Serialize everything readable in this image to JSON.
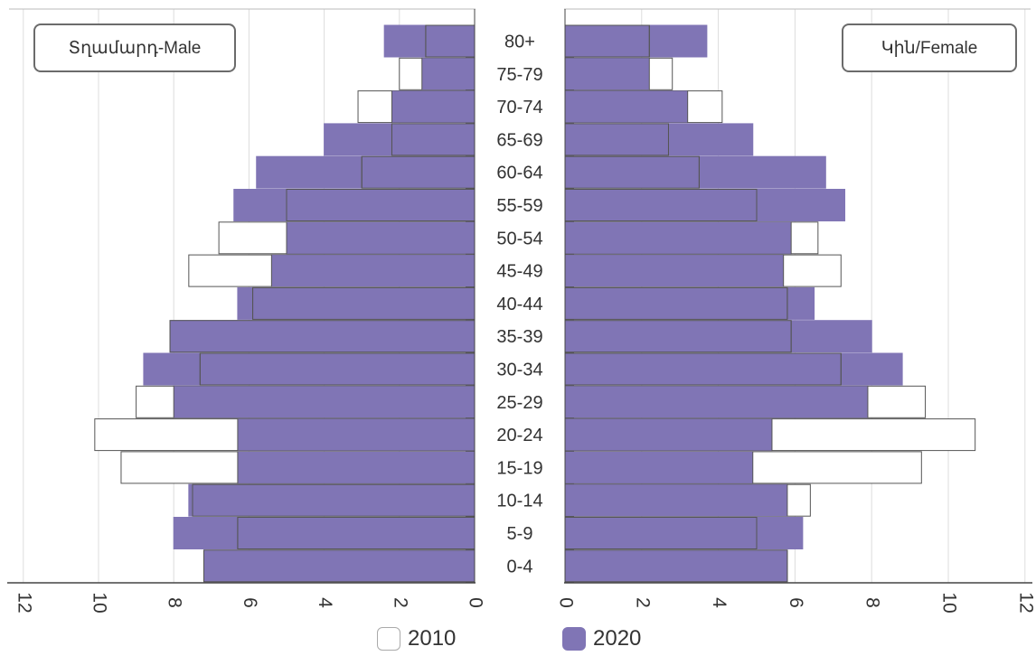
{
  "chart_data": {
    "type": "bar",
    "subtype": "population-pyramid",
    "categories": [
      "80+",
      "75-79",
      "70-74",
      "65-69",
      "60-64",
      "55-59",
      "50-54",
      "45-49",
      "40-44",
      "35-39",
      "30-34",
      "25-29",
      "20-24",
      "15-19",
      "10-14",
      "5-9",
      "0-4"
    ],
    "panels": [
      {
        "label": "Տղամարդ-Male",
        "direction": "left",
        "xlim": [
          0,
          12
        ],
        "ticks": [
          12,
          10,
          8,
          6,
          4,
          2,
          0
        ],
        "series": [
          {
            "name": "2010",
            "values": [
              1.3,
              2.0,
              3.1,
              2.2,
              3.0,
              5.0,
              6.8,
              7.6,
              5.9,
              8.1,
              7.3,
              9.0,
              10.1,
              9.4,
              7.5,
              6.3,
              7.2
            ]
          },
          {
            "name": "2020",
            "values": [
              2.4,
              1.4,
              2.2,
              4.0,
              5.8,
              6.4,
              5.0,
              5.4,
              6.3,
              8.1,
              8.8,
              8.0,
              6.3,
              6.3,
              7.6,
              8.0,
              7.2
            ]
          }
        ]
      },
      {
        "label": "Կին/Female",
        "direction": "right",
        "xlim": [
          0,
          12
        ],
        "ticks": [
          0,
          2,
          4,
          6,
          8,
          10,
          12
        ],
        "series": [
          {
            "name": "2010",
            "values": [
              2.2,
              2.8,
              4.1,
              2.7,
              3.5,
              5.0,
              6.6,
              7.2,
              5.8,
              5.9,
              7.2,
              9.4,
              10.7,
              9.3,
              6.4,
              5.0,
              5.8
            ]
          },
          {
            "name": "2020",
            "values": [
              3.7,
              2.2,
              3.2,
              4.9,
              6.8,
              7.3,
              5.9,
              5.7,
              6.5,
              8.0,
              8.8,
              7.9,
              5.4,
              4.9,
              5.8,
              6.2,
              5.8
            ]
          }
        ]
      }
    ],
    "legend": {
      "position": "bottom",
      "items": [
        "2010",
        "2020"
      ]
    },
    "grid": true,
    "colors": {
      "2010": "#ffffff",
      "2020": "#8075b5",
      "border": "#555555",
      "grid": "#dddddd"
    }
  }
}
